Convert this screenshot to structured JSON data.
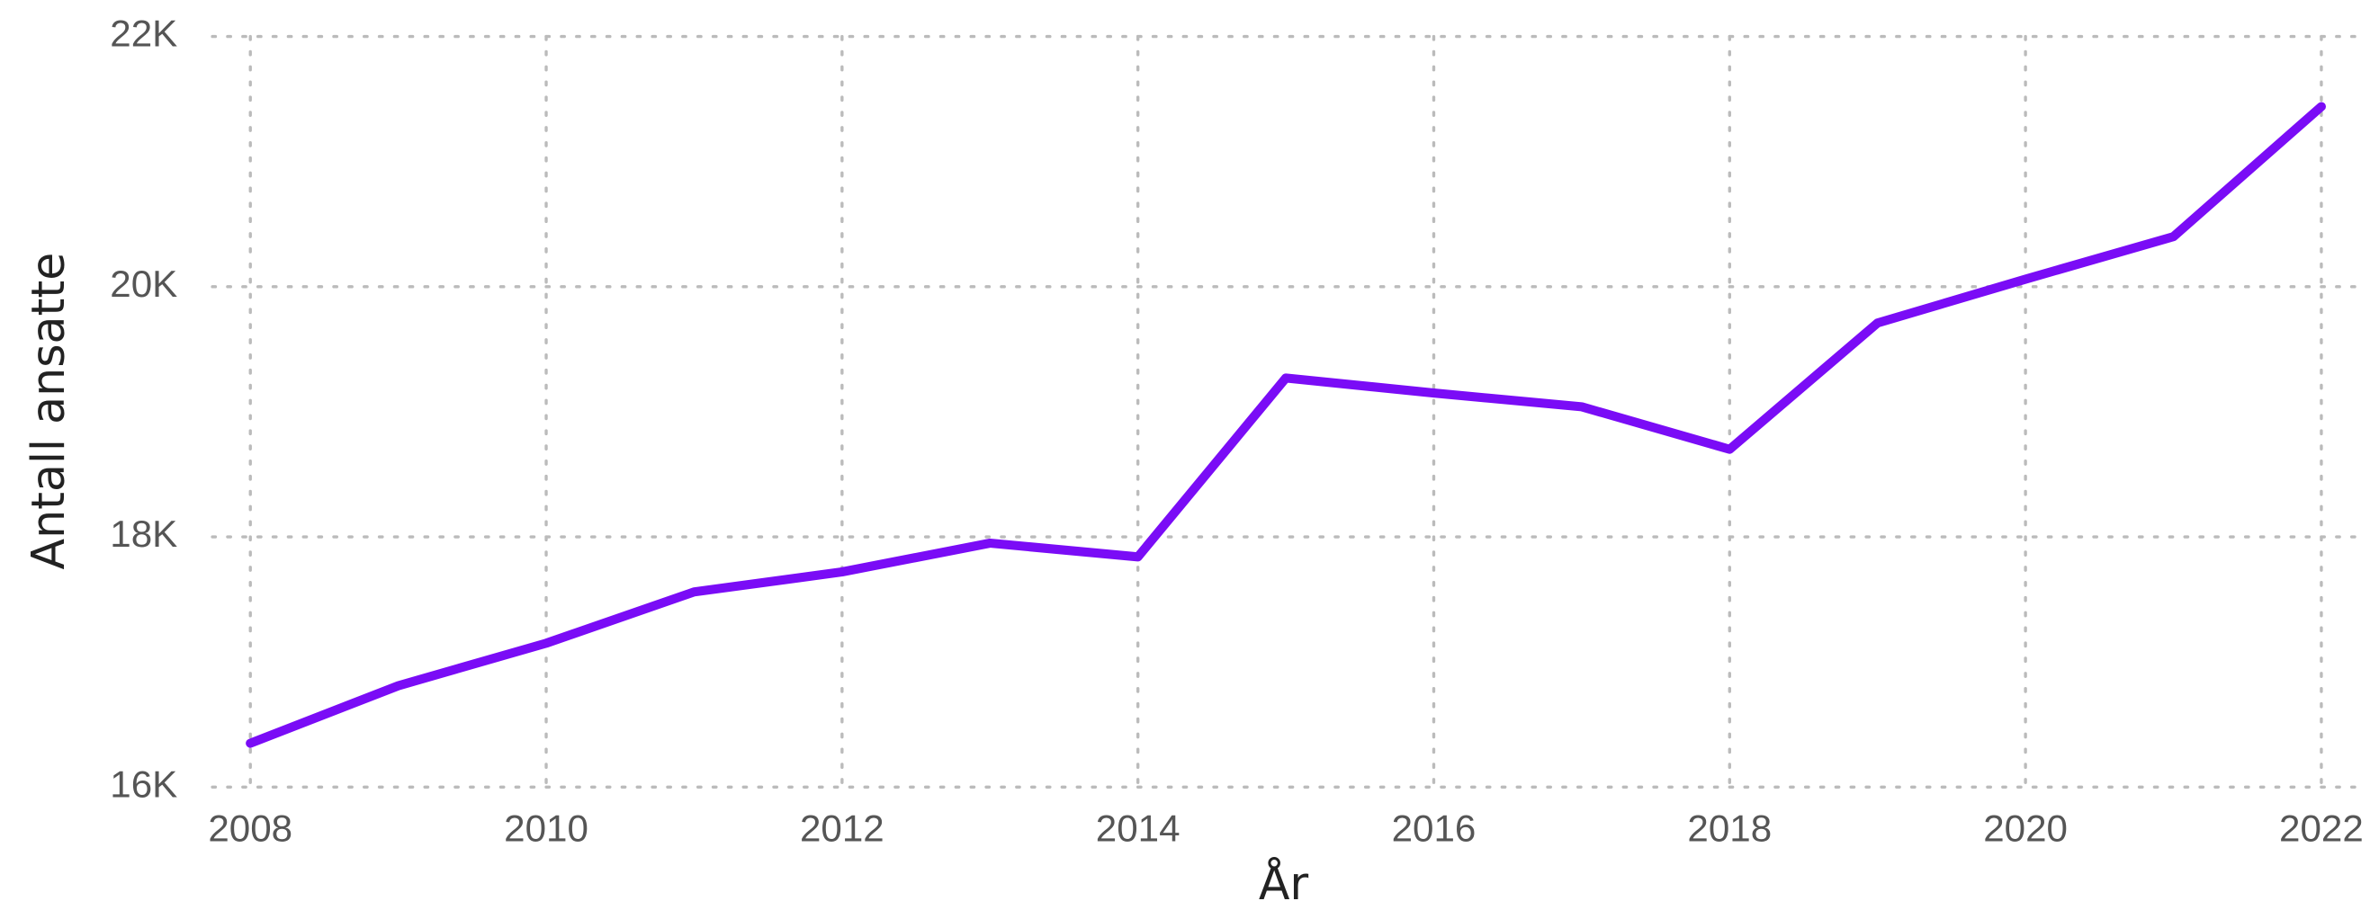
{
  "chart_data": {
    "type": "line",
    "x_label": "År",
    "y_label": "Antall ansatte",
    "x": [
      2008,
      2009,
      2010,
      2011,
      2012,
      2013,
      2014,
      2015,
      2016,
      2017,
      2018,
      2019,
      2020,
      2021,
      2022
    ],
    "series": [
      {
        "name": "Antall ansatte",
        "color": "#7a0cf6",
        "values": [
          16350,
          16810,
          17150,
          17560,
          17720,
          17950,
          17840,
          19270,
          19150,
          19040,
          18700,
          19710,
          20060,
          20400,
          21440
        ]
      }
    ],
    "xlim": [
      2008,
      2022
    ],
    "xticks": [
      2008,
      2010,
      2012,
      2014,
      2016,
      2018,
      2020,
      2022
    ],
    "ylim": [
      16000,
      22000
    ],
    "yticks": [
      {
        "value": 16000,
        "label": "16K"
      },
      {
        "value": 18000,
        "label": "18K"
      },
      {
        "value": 20000,
        "label": "20K"
      },
      {
        "value": 22000,
        "label": "22K"
      }
    ],
    "grid": true,
    "legend": false
  }
}
